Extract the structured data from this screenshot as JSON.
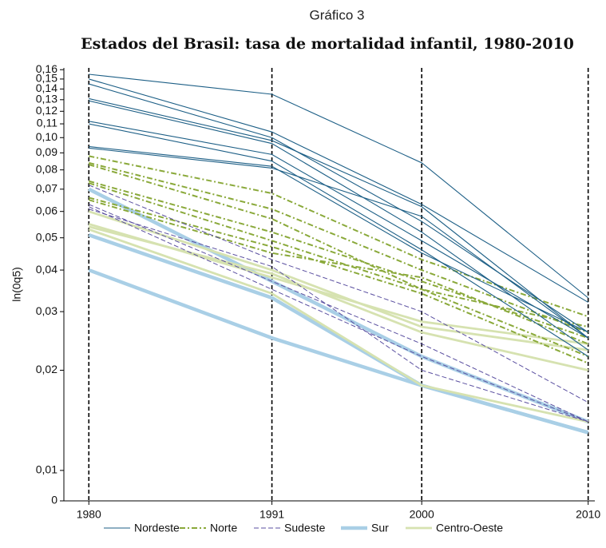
{
  "chart_data": {
    "type": "line",
    "label": "Gráfico 3",
    "title": "Estados del Brasil: tasa de mortalidad infantil, 1980-2010",
    "y_label": "ln(0q5)",
    "log_y": true,
    "x": [
      1980,
      1991,
      2000,
      2010
    ],
    "xlim": [
      1978.5,
      2010.4
    ],
    "xticks": [
      1980,
      1991,
      2000,
      2010
    ],
    "ylim": [
      0.0081,
      0.162
    ],
    "yticks": [
      {
        "value": 0.0081,
        "label": "0"
      },
      {
        "value": 0.01,
        "label": "0,01"
      },
      {
        "value": 0.02,
        "label": "0,02"
      },
      {
        "value": 0.03,
        "label": "0,03"
      },
      {
        "value": 0.04,
        "label": "0,04"
      },
      {
        "value": 0.05,
        "label": "0,05"
      },
      {
        "value": 0.06,
        "label": "0,06"
      },
      {
        "value": 0.07,
        "label": "0,07"
      },
      {
        "value": 0.08,
        "label": "0,08"
      },
      {
        "value": 0.09,
        "label": "0,09"
      },
      {
        "value": 0.1,
        "label": "0,10"
      },
      {
        "value": 0.11,
        "label": "0,11"
      },
      {
        "value": 0.12,
        "label": "0,12"
      },
      {
        "value": 0.13,
        "label": "0,13"
      },
      {
        "value": 0.14,
        "label": "0,14"
      },
      {
        "value": 0.15,
        "label": "0,15"
      },
      {
        "value": 0.16,
        "label": "0,16"
      }
    ],
    "vertical_dashed_lines": true,
    "series": [
      {
        "name": "Nordeste",
        "color": "#1d5f86",
        "style": "solid",
        "lines": [
          [
            0.155,
            0.135,
            0.084,
            0.033
          ],
          [
            0.15,
            0.104,
            0.063,
            0.032
          ],
          [
            0.145,
            0.1,
            0.056,
            0.026
          ],
          [
            0.131,
            0.098,
            0.062,
            0.025
          ],
          [
            0.129,
            0.096,
            0.052,
            0.023
          ],
          [
            0.112,
            0.089,
            0.049,
            0.025
          ],
          [
            0.11,
            0.085,
            0.046,
            0.022
          ],
          [
            0.094,
            0.082,
            0.045,
            0.026
          ],
          [
            0.093,
            0.081,
            0.058,
            0.025
          ]
        ]
      },
      {
        "name": "Norte",
        "color": "#8aa93a",
        "style": "dashdot",
        "lines": [
          [
            0.088,
            0.068,
            0.043,
            0.029
          ],
          [
            0.084,
            0.061,
            0.04,
            0.026
          ],
          [
            0.083,
            0.057,
            0.035,
            0.027
          ],
          [
            0.074,
            0.052,
            0.037,
            0.025
          ],
          [
            0.073,
            0.049,
            0.035,
            0.022
          ],
          [
            0.066,
            0.047,
            0.034,
            0.021
          ],
          [
            0.065,
            0.045,
            0.038,
            0.024
          ]
        ]
      },
      {
        "name": "Sudeste",
        "color": "#5a4fa0",
        "style": "dash",
        "lines": [
          [
            0.072,
            0.043,
            0.03,
            0.016
          ],
          [
            0.063,
            0.037,
            0.024,
            0.014
          ],
          [
            0.062,
            0.035,
            0.022,
            0.014
          ],
          [
            0.061,
            0.041,
            0.02,
            0.014
          ]
        ]
      },
      {
        "name": "Sur",
        "color": "#a9cfe6",
        "style": "thick",
        "lines": [
          [
            0.07,
            0.037,
            0.022,
            0.014
          ],
          [
            0.051,
            0.033,
            0.018,
            0.013
          ],
          [
            0.04,
            0.025,
            0.018,
            0.013
          ]
        ]
      },
      {
        "name": "Centro-Oeste",
        "color": "#d6e2b0",
        "style": "medium",
        "lines": [
          [
            0.06,
            0.04,
            0.027,
            0.023
          ],
          [
            0.054,
            0.039,
            0.026,
            0.02
          ],
          [
            0.053,
            0.034,
            0.018,
            0.014
          ],
          [
            0.055,
            0.038,
            0.028,
            0.024
          ]
        ]
      }
    ]
  }
}
